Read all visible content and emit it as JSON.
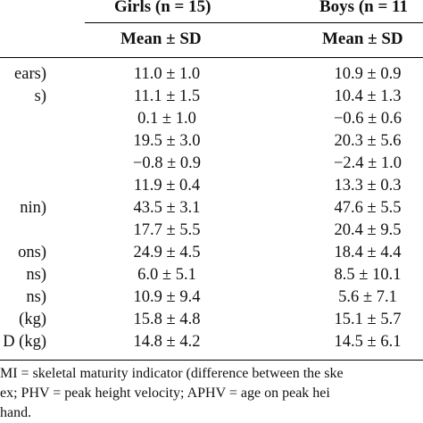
{
  "table": {
    "headers": {
      "girls": "Girls (n = 15)",
      "boys": "Boys (n = 11",
      "girls_stat": "Mean ± SD",
      "boys_stat": "Mean ± SD"
    },
    "rows": [
      {
        "label": "ears)",
        "girls": "11.0 ± 1.0",
        "boys": "10.9 ± 0.9"
      },
      {
        "label": "s)",
        "girls": "11.1 ± 1.5",
        "boys": "10.4 ± 1.3"
      },
      {
        "label": "",
        "girls": "0.1 ± 1.0",
        "boys": "−0.6 ± 0.6"
      },
      {
        "label": "",
        "girls": "19.5 ± 3.0",
        "boys": "20.3 ± 5.6"
      },
      {
        "label": "",
        "girls": "−0.8 ± 0.9",
        "boys": "−2.4 ± 1.0"
      },
      {
        "label": "",
        "girls": "11.9 ± 0.4",
        "boys": "13.3 ± 0.3"
      },
      {
        "label": "nin)",
        "girls": "43.5 ± 3.1",
        "boys": "47.6 ± 5.5"
      },
      {
        "label": "",
        "girls": "17.7 ± 5.5",
        "boys": "20.4 ± 9.5"
      },
      {
        "label": "ons)",
        "girls": "24.9 ± 4.5",
        "boys": "18.4 ± 4.4"
      },
      {
        "label": "ns)",
        "girls": "6.0 ± 5.1",
        "boys": "8.5 ± 10.1"
      },
      {
        "label": "ns)",
        "girls": "10.9 ± 9.4",
        "boys": "5.6 ± 7.1"
      },
      {
        "label": "(kg)",
        "girls": "15.8 ± 4.8",
        "boys": "15.1 ± 5.7"
      },
      {
        "label": "D (kg)",
        "girls": "14.8 ± 4.2",
        "boys": "14.5 ± 6.1"
      }
    ],
    "footnotes": [
      "MI = skeletal maturity indicator (difference between the ske",
      "ex; PHV = peak height velocity; APHV = age on peak hei",
      "hand."
    ]
  }
}
